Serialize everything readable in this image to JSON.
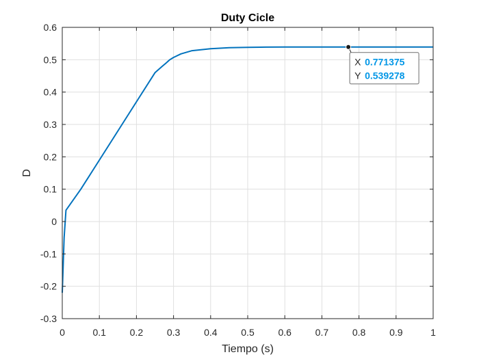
{
  "chart_data": {
    "type": "line",
    "title": "Duty Cicle",
    "xlabel": "Tiempo (s)",
    "ylabel": "D",
    "xlim": [
      0,
      1
    ],
    "ylim": [
      -0.3,
      0.6
    ],
    "xticks": [
      0,
      0.1,
      0.2,
      0.3,
      0.4,
      0.5,
      0.6,
      0.7,
      0.8,
      0.9,
      1
    ],
    "xtick_labels": [
      "0",
      "0.1",
      "0.2",
      "0.3",
      "0.4",
      "0.5",
      "0.6",
      "0.7",
      "0.8",
      "0.9",
      "1"
    ],
    "yticks": [
      -0.3,
      -0.2,
      -0.1,
      0,
      0.1,
      0.2,
      0.3,
      0.4,
      0.5,
      0.6
    ],
    "ytick_labels": [
      "-0.3",
      "-0.2",
      "-0.1",
      "0",
      "0.1",
      "0.2",
      "0.3",
      "0.4",
      "0.5",
      "0.6"
    ],
    "grid": true,
    "series": [
      {
        "color": "#0072BD",
        "x": [
          0,
          0.005,
          0.01,
          0.05,
          0.1,
          0.15,
          0.2,
          0.25,
          0.27,
          0.28,
          0.29,
          0.3,
          0.32,
          0.35,
          0.4,
          0.45,
          0.5,
          0.55,
          0.6,
          0.7,
          0.8,
          0.9,
          1
        ],
        "y": [
          -0.22,
          -0.05,
          0.035,
          0.1,
          0.19,
          0.28,
          0.37,
          0.46,
          0.48,
          0.49,
          0.5,
          0.507,
          0.518,
          0.528,
          0.534,
          0.537,
          0.538,
          0.539,
          0.5392,
          0.5393,
          0.5393,
          0.5393,
          0.5393
        ]
      }
    ],
    "datatip": {
      "x": 0.771375,
      "y": 0.539278,
      "x_label": "X",
      "y_label": "Y",
      "x_text": "0.771375",
      "y_text": "0.539278",
      "value_color": "#0096E6"
    }
  }
}
